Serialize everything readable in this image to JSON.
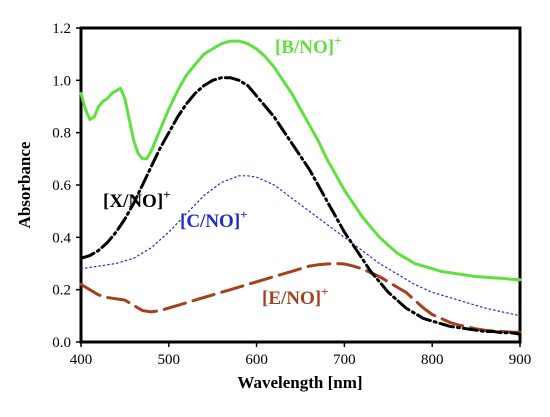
{
  "chart_data": {
    "type": "line",
    "title": "",
    "xlabel": "Wavelength [nm]",
    "ylabel": "Absorbance",
    "xlim": [
      400,
      900
    ],
    "ylim": [
      0.0,
      1.2
    ],
    "xticks": [
      400,
      500,
      600,
      700,
      800,
      900
    ],
    "yticks": [
      0.0,
      0.2,
      0.4,
      0.6,
      0.8,
      1.0,
      1.2
    ],
    "xtick_labels": [
      "400",
      "500",
      "600",
      "700",
      "800",
      "900"
    ],
    "ytick_labels": [
      "0.0",
      "0.2",
      "0.4",
      "0.6",
      "0.8",
      "1.0",
      "1.2"
    ],
    "grid": false,
    "legend": "inline labels",
    "series": [
      {
        "key": "B",
        "label_main": "[B/NO]",
        "label_sup": "+",
        "color": "#5ee13d",
        "style": "solid",
        "x": [
          400,
          405,
          410,
          415,
          420,
          425,
          430,
          435,
          440,
          445,
          450,
          455,
          460,
          465,
          470,
          475,
          480,
          490,
          500,
          510,
          520,
          530,
          540,
          550,
          560,
          570,
          580,
          590,
          600,
          610,
          620,
          630,
          640,
          650,
          660,
          670,
          680,
          690,
          700,
          710,
          720,
          730,
          740,
          750,
          760,
          770,
          780,
          790,
          800,
          810,
          820,
          830,
          840,
          850,
          860,
          870,
          880,
          890,
          900
        ],
        "y": [
          0.95,
          0.89,
          0.85,
          0.86,
          0.9,
          0.92,
          0.93,
          0.95,
          0.96,
          0.97,
          0.93,
          0.85,
          0.77,
          0.72,
          0.7,
          0.7,
          0.73,
          0.81,
          0.89,
          0.96,
          1.02,
          1.06,
          1.1,
          1.12,
          1.14,
          1.15,
          1.15,
          1.14,
          1.12,
          1.09,
          1.05,
          1.0,
          0.95,
          0.89,
          0.83,
          0.77,
          0.7,
          0.64,
          0.58,
          0.53,
          0.48,
          0.44,
          0.4,
          0.37,
          0.34,
          0.32,
          0.3,
          0.29,
          0.28,
          0.27,
          0.265,
          0.26,
          0.255,
          0.25,
          0.248,
          0.245,
          0.243,
          0.24,
          0.238
        ]
      },
      {
        "key": "X",
        "label_main": "[X/NO]",
        "label_sup": "+",
        "color": "#000000",
        "style": "dash-dot",
        "x": [
          400,
          410,
          420,
          430,
          440,
          450,
          460,
          470,
          480,
          490,
          500,
          510,
          520,
          530,
          540,
          550,
          560,
          570,
          580,
          590,
          600,
          610,
          620,
          630,
          640,
          650,
          660,
          670,
          680,
          690,
          700,
          710,
          720,
          730,
          740,
          750,
          760,
          770,
          780,
          790,
          800,
          810,
          820,
          830,
          840,
          850,
          860,
          870,
          880,
          890,
          900
        ],
        "y": [
          0.32,
          0.33,
          0.35,
          0.38,
          0.42,
          0.47,
          0.53,
          0.6,
          0.67,
          0.74,
          0.8,
          0.86,
          0.91,
          0.95,
          0.98,
          1.0,
          1.01,
          1.01,
          1.0,
          0.98,
          0.94,
          0.9,
          0.86,
          0.81,
          0.76,
          0.71,
          0.66,
          0.6,
          0.54,
          0.48,
          0.42,
          0.37,
          0.32,
          0.27,
          0.23,
          0.19,
          0.16,
          0.13,
          0.11,
          0.09,
          0.08,
          0.07,
          0.06,
          0.055,
          0.05,
          0.045,
          0.04,
          0.04,
          0.035,
          0.035,
          0.03
        ]
      },
      {
        "key": "C",
        "label_main": "[C/NO]",
        "label_sup": "+",
        "color": "#1d2bd0",
        "style": "dotted",
        "x": [
          400,
          420,
          440,
          460,
          480,
          500,
          520,
          540,
          560,
          580,
          590,
          600,
          620,
          640,
          660,
          680,
          700,
          720,
          740,
          760,
          780,
          800,
          820,
          840,
          860,
          880,
          900
        ],
        "y": [
          0.28,
          0.29,
          0.3,
          0.32,
          0.36,
          0.42,
          0.49,
          0.56,
          0.61,
          0.635,
          0.635,
          0.63,
          0.6,
          0.55,
          0.5,
          0.45,
          0.4,
          0.35,
          0.3,
          0.26,
          0.22,
          0.19,
          0.17,
          0.15,
          0.13,
          0.115,
          0.1
        ]
      },
      {
        "key": "E",
        "label_main": "[E/NO]",
        "label_sup": "+",
        "color": "#a5401f",
        "style": "long-dash",
        "x": [
          400,
          410,
          420,
          430,
          440,
          450,
          460,
          470,
          480,
          490,
          500,
          510,
          520,
          530,
          540,
          550,
          560,
          570,
          580,
          590,
          600,
          610,
          620,
          630,
          640,
          650,
          660,
          670,
          680,
          690,
          700,
          710,
          720,
          730,
          740,
          750,
          760,
          770,
          780,
          790,
          800,
          810,
          820,
          830,
          840,
          850,
          860,
          870,
          880,
          890,
          900
        ],
        "y": [
          0.22,
          0.2,
          0.18,
          0.17,
          0.165,
          0.16,
          0.14,
          0.12,
          0.115,
          0.12,
          0.13,
          0.14,
          0.15,
          0.16,
          0.17,
          0.18,
          0.19,
          0.2,
          0.21,
          0.22,
          0.23,
          0.24,
          0.25,
          0.26,
          0.27,
          0.28,
          0.29,
          0.295,
          0.298,
          0.3,
          0.298,
          0.29,
          0.28,
          0.265,
          0.25,
          0.23,
          0.21,
          0.19,
          0.16,
          0.13,
          0.105,
          0.09,
          0.075,
          0.065,
          0.058,
          0.05,
          0.045,
          0.042,
          0.04,
          0.038,
          0.037
        ]
      }
    ]
  }
}
